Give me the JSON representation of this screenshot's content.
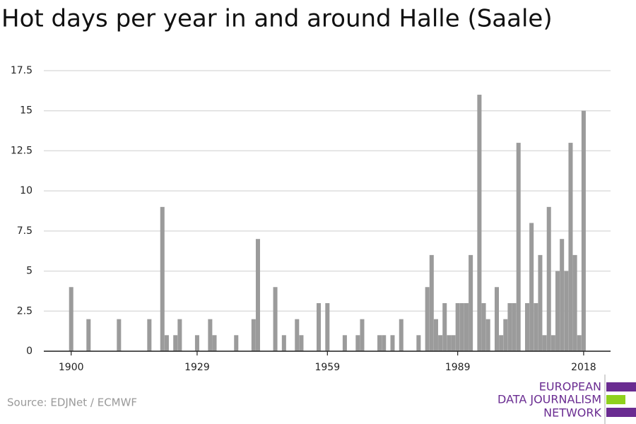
{
  "chart_data": {
    "type": "bar",
    "title": "Hot days per year in and around Halle (Saale)",
    "source": "Source: EDJNet / ECMWF",
    "logo": [
      "EUROPEAN",
      "DATA JOURNALISM",
      "NETWORK"
    ],
    "color": "#9b9b9b",
    "x": [
      1900,
      1904,
      1911,
      1918,
      1921,
      1922,
      1924,
      1925,
      1929,
      1932,
      1933,
      1938,
      1942,
      1943,
      1947,
      1949,
      1952,
      1953,
      1957,
      1959,
      1963,
      1966,
      1967,
      1971,
      1972,
      1974,
      1976,
      1980,
      1982,
      1983,
      1984,
      1985,
      1986,
      1987,
      1988,
      1989,
      1990,
      1991,
      1992,
      1994,
      1995,
      1996,
      1998,
      1999,
      2000,
      2001,
      2002,
      2003,
      2005,
      2006,
      2007,
      2008,
      2009,
      2010,
      2011,
      2012,
      2013,
      2014,
      2015,
      2016,
      2017,
      2018
    ],
    "values": [
      4,
      2,
      2,
      2,
      9,
      1,
      1,
      2,
      1,
      2,
      1,
      1,
      2,
      7,
      4,
      1,
      2,
      1,
      3,
      3,
      1,
      1,
      2,
      1,
      1,
      1,
      2,
      1,
      4,
      6,
      2,
      1,
      3,
      1,
      1,
      3,
      3,
      3,
      6,
      16,
      3,
      2,
      4,
      1,
      2,
      3,
      3,
      13,
      3,
      8,
      3,
      6,
      1,
      9,
      1,
      5,
      7,
      5,
      13,
      6,
      1,
      15
    ],
    "xlim": [
      1893.7,
      2024.2
    ],
    "xticks": [
      1900,
      1929,
      1959,
      1989,
      2018
    ],
    "ylim": [
      0,
      17.5
    ],
    "yticks": [
      0,
      2.5,
      5,
      7.5,
      10,
      12.5,
      15,
      17.5
    ],
    "grid": true
  }
}
